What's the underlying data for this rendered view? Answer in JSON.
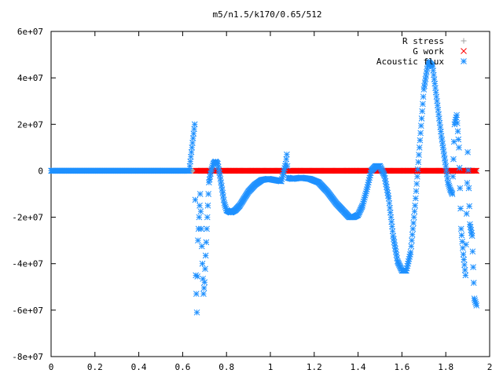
{
  "chart_data": {
    "type": "scatter",
    "title": "m5/n1.5/k170/0.65/512",
    "xlabel": "",
    "ylabel": "",
    "xlim": [
      0,
      2
    ],
    "ylim": [
      -80000000,
      60000000
    ],
    "x_ticks": [
      0,
      0.2,
      0.4,
      0.6,
      0.8,
      1,
      1.2,
      1.4,
      1.6,
      1.8,
      2
    ],
    "x_tick_labels": [
      "0",
      "0.2",
      "0.4",
      "0.6",
      "0.8",
      "1",
      "1.2",
      "1.4",
      "1.6",
      "1.8",
      "2"
    ],
    "y_ticks": [
      -80000000,
      -60000000,
      -40000000,
      -20000000,
      0,
      20000000,
      40000000,
      60000000
    ],
    "y_tick_labels": [
      "-8e+07",
      "-6e+07",
      "-4e+07",
      "-2e+07",
      "0",
      "2e+07",
      "4e+07",
      "6e+07"
    ],
    "grid": false,
    "legend_position": "top-right",
    "series": [
      {
        "name": "R stress",
        "marker": "plus",
        "color": "#a0a0a0",
        "x": [
          0.0,
          0.3,
          0.6,
          0.9,
          1.2,
          1.5,
          1.8,
          1.94
        ],
        "y": [
          0,
          0,
          0,
          0,
          0,
          0,
          0,
          0
        ]
      },
      {
        "name": "G work",
        "marker": "cross",
        "color": "#ff0000",
        "x": [
          0.66,
          0.7,
          0.75,
          0.8,
          0.85,
          0.9,
          0.95,
          1.0,
          1.05,
          1.1,
          1.15,
          1.2,
          1.25,
          1.3,
          1.35,
          1.4,
          1.45,
          1.5,
          1.55,
          1.6,
          1.65,
          1.7,
          1.75,
          1.8,
          1.85,
          1.9,
          1.94
        ],
        "y": [
          0,
          0,
          0,
          0,
          0,
          0,
          0,
          0,
          0,
          0,
          0,
          0,
          0,
          0,
          0,
          0,
          0,
          0,
          0,
          0,
          0,
          0,
          0,
          0,
          0,
          0,
          0
        ]
      },
      {
        "name": "Acoustic flux",
        "marker": "star",
        "color": "#1e90ff",
        "x": [
          0.0,
          0.05,
          0.1,
          0.15,
          0.2,
          0.25,
          0.3,
          0.35,
          0.4,
          0.45,
          0.5,
          0.55,
          0.6,
          0.63,
          0.655,
          0.66,
          0.665,
          0.67,
          0.68,
          0.69,
          0.695,
          0.7,
          0.71,
          0.72,
          0.73,
          0.74,
          0.75,
          0.76,
          0.77,
          0.78,
          0.79,
          0.8,
          0.82,
          0.84,
          0.86,
          0.88,
          0.9,
          0.93,
          0.96,
          0.99,
          1.02,
          1.05,
          1.07,
          1.075,
          1.08,
          1.1,
          1.14,
          1.18,
          1.22,
          1.26,
          1.3,
          1.34,
          1.36,
          1.38,
          1.4,
          1.42,
          1.44,
          1.46,
          1.48,
          1.5,
          1.52,
          1.54,
          1.56,
          1.58,
          1.6,
          1.62,
          1.64,
          1.66,
          1.68,
          1.7,
          1.72,
          1.74,
          1.76,
          1.78,
          1.8,
          1.81,
          1.82,
          1.83,
          1.84,
          1.85,
          1.86,
          1.87,
          1.88,
          1.89,
          1.9,
          1.91,
          1.92,
          1.93,
          1.94
        ],
        "y": [
          0,
          0,
          0,
          0,
          0,
          0,
          0,
          0,
          0,
          0,
          0,
          0,
          0,
          0,
          20000000,
          -45000000,
          -61000000,
          -30000000,
          -10000000,
          -40000000,
          -53000000,
          -48000000,
          -25000000,
          -5000000,
          0,
          3000000,
          4000000,
          3000000,
          -2000000,
          -8000000,
          -14000000,
          -17000000,
          -18000000,
          -17000000,
          -15000000,
          -12000000,
          -9000000,
          -6000000,
          -4000000,
          -3500000,
          -4000000,
          -4500000,
          3000000,
          7000000,
          -3000000,
          -3500000,
          -3000000,
          -3500000,
          -5000000,
          -9000000,
          -14000000,
          -18000000,
          -20000000,
          -20000000,
          -19000000,
          -15000000,
          -8000000,
          0,
          2000000,
          2000000,
          -2000000,
          -12000000,
          -28000000,
          -39000000,
          -43000000,
          -43000000,
          -35000000,
          -15000000,
          10000000,
          35000000,
          47000000,
          45000000,
          30000000,
          15000000,
          2000000,
          -5000000,
          -8000000,
          -10000000,
          20000000,
          24000000,
          10000000,
          -25000000,
          -36000000,
          -45000000,
          8000000,
          -23000000,
          -28000000,
          -55000000,
          -58000000
        ]
      }
    ]
  }
}
